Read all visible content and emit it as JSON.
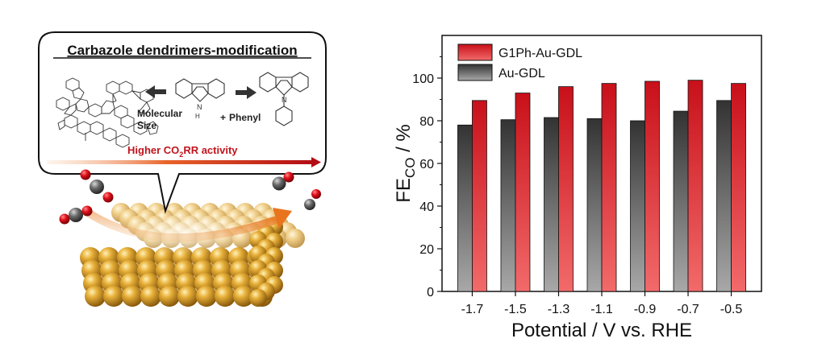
{
  "scheme": {
    "title": "Carbazole dendrimers-modification",
    "arrow_left_label_line1": "Molecular",
    "arrow_left_label_line2": "Size",
    "arrow_right_prefix": "+",
    "arrow_right_label": "Phenyl",
    "nh_label": "N",
    "h_label": "H",
    "n_label": "N",
    "activity_prefix": "Higher CO",
    "activity_sub": "2",
    "activity_suffix": "RR activity",
    "colors": {
      "activity_red": "#c0141c",
      "gold": "#c8901e",
      "oxygen": "#e0101a",
      "carbon": "#555555"
    }
  },
  "chart_data": {
    "type": "bar",
    "categories": [
      "-1.7",
      "-1.5",
      "-1.3",
      "-1.1",
      "-0.9",
      "-0.7",
      "-0.5"
    ],
    "series": [
      {
        "name": "Au-GDL",
        "values": [
          78,
          80.5,
          81.5,
          81,
          80,
          84.5,
          89.5
        ],
        "color": "#3a3a3a"
      },
      {
        "name": "G1Ph-Au-GDL",
        "values": [
          89.5,
          93,
          96,
          97.5,
          98.5,
          99,
          97.5
        ],
        "color": "#d81a22"
      }
    ],
    "legend_order": [
      "G1Ph-Au-GDL",
      "Au-GDL"
    ],
    "ylim": [
      0,
      120
    ],
    "yticks": [
      "0",
      "20",
      "40",
      "60",
      "80",
      "100"
    ],
    "ylabel_main": "FE",
    "ylabel_sub": "CO",
    "ylabel_suffix": " / %",
    "xlabel": "Potential / V vs. RHE"
  }
}
